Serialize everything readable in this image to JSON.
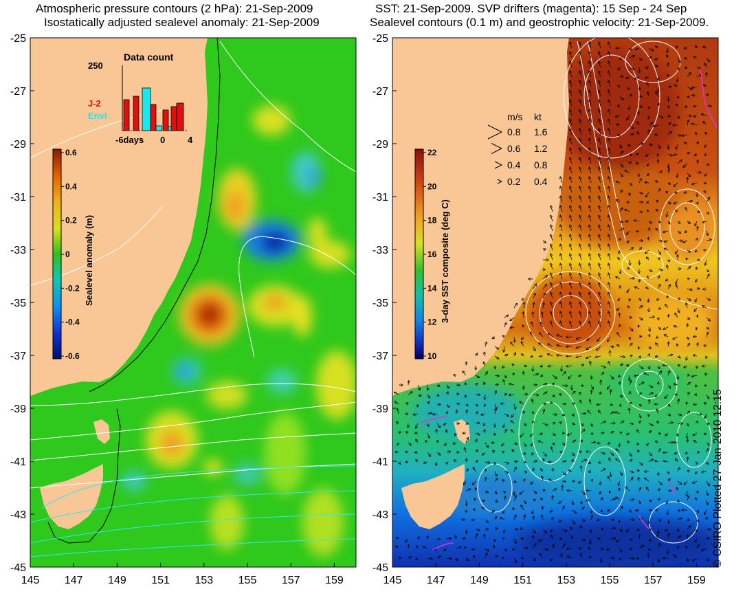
{
  "left_panel": {
    "title_line1": "Atmospheric pressure contours (2 hPa): 21-Sep-2009",
    "title_line2": "Isostatically adjusted sealevel anomaly: 21-Sep-2009",
    "lat_ticks": [
      "-25",
      "-27",
      "-29",
      "-31",
      "-33",
      "-35",
      "-37",
      "-39",
      "-41",
      "-43",
      "-45"
    ],
    "lon_ticks": [
      "145",
      "147",
      "149",
      "151",
      "153",
      "155",
      "157",
      "159"
    ],
    "colorbar": {
      "label": "Sealevel anomaly (m)",
      "ticks": [
        "0.6",
        "0.4",
        "0.2",
        "0",
        "-0.2",
        "-0.4",
        "-0.6"
      ]
    },
    "data_count": {
      "title": "Data count",
      "ymax_label": "250",
      "series1_label": "J-2",
      "series2_label": "Envi",
      "series1_color": "#e01010",
      "series2_color": "#18e8f0",
      "x_labels": [
        "-6days",
        "0",
        "4"
      ]
    }
  },
  "right_panel": {
    "title_line1": "SST: 21-Sep-2009. SVP drifters (magenta): 15 Sep - 24 Sep",
    "title_line2": "Sealevel contours (0.1 m) and geostrophic velocity: 21-Sep-2009.",
    "lat_ticks": [
      "-25",
      "-27",
      "-29",
      "-31",
      "-33",
      "-35",
      "-37",
      "-39",
      "-41",
      "-43",
      "-45"
    ],
    "lon_ticks": [
      "145",
      "147",
      "149",
      "151",
      "153",
      "155",
      "157",
      "159"
    ],
    "colorbar": {
      "label": "3-day SST composite (deg C)",
      "ticks": [
        "22",
        "20",
        "18",
        "16",
        "14",
        "12",
        "10"
      ]
    },
    "velocity_legend": {
      "header_ms": "m/s",
      "header_kt": "kt",
      "rows": [
        {
          "ms": "0.8",
          "kt": "1.6"
        },
        {
          "ms": "0.6",
          "kt": "1.2"
        },
        {
          "ms": "0.4",
          "kt": "0.8"
        },
        {
          "ms": "0.2",
          "kt": "0.4"
        }
      ]
    }
  },
  "copyright": "© CSIRO Plotted 27-Jan-2010 12:15",
  "colors": {
    "land": "#f9c796",
    "ocean_green": "#2fc81c"
  }
}
